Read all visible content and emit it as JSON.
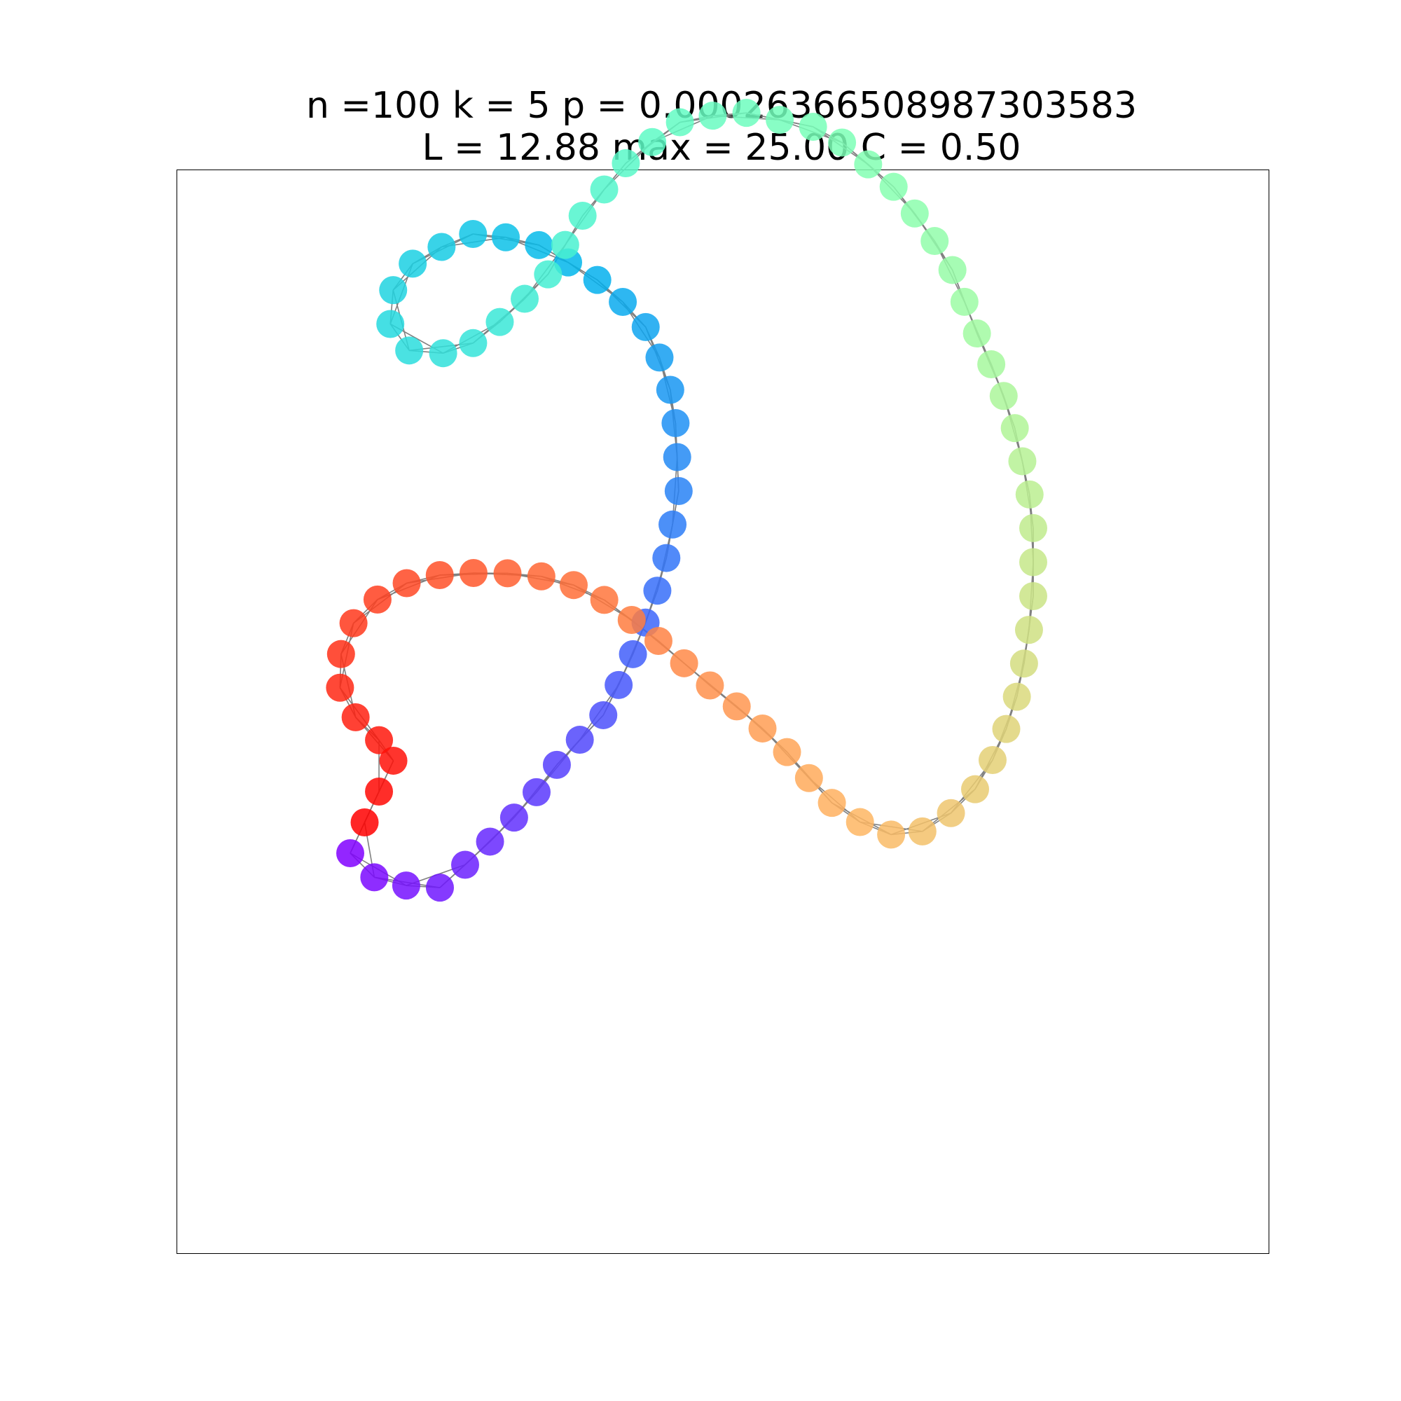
{
  "title": {
    "line1": "n =100 k = 5 p = 0.00026366508987303583",
    "line2": "L = 12.88 max = 25.00 C = 0.50"
  },
  "graph": {
    "n": 100,
    "k": 5,
    "edge_color": "#808080",
    "node_cmap": "rainbow"
  }
}
